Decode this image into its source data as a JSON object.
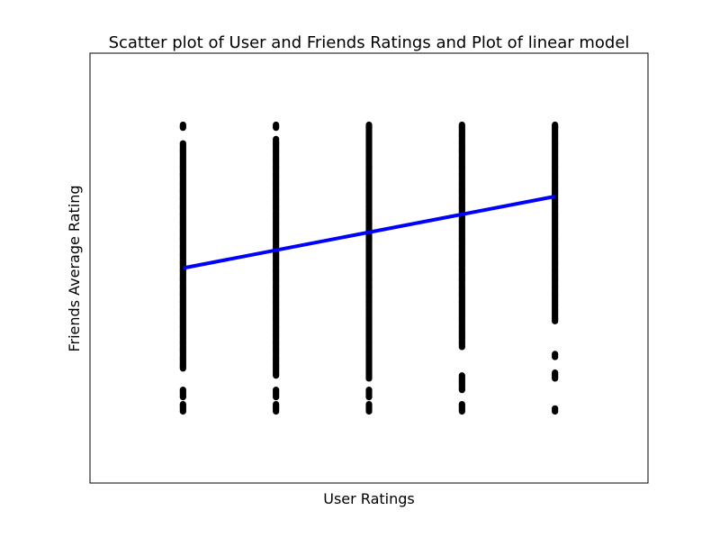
{
  "chart_data": {
    "type": "scatter",
    "title": "Scatter plot of User and Friends Ratings and Plot of linear model",
    "xlabel": "User Ratings",
    "ylabel": "Friends Average Rating",
    "xlim": [
      0,
      6
    ],
    "ylim": [
      0,
      6
    ],
    "grid": false,
    "ticks_visible": false,
    "colors": {
      "points": "#000000",
      "line": "#0000ff",
      "background": "#ffffff",
      "frame": "#000000"
    },
    "point_columns": [
      {
        "x": 1,
        "y_range": [
          1.0,
          5.0
        ],
        "gaps": [
          [
            4.75,
            4.95
          ],
          [
            1.3,
            1.6
          ],
          [
            1.1,
            1.2
          ]
        ]
      },
      {
        "x": 2,
        "y_range": [
          1.0,
          5.0
        ],
        "gaps": [
          [
            4.8,
            4.95
          ],
          [
            1.3,
            1.5
          ],
          [
            1.1,
            1.2
          ]
        ]
      },
      {
        "x": 3,
        "y_range": [
          1.0,
          5.0
        ],
        "gaps": [
          [
            1.3,
            1.45
          ],
          [
            1.1,
            1.2
          ]
        ]
      },
      {
        "x": 4,
        "y_range": [
          1.0,
          5.0
        ],
        "gaps": [
          [
            1.5,
            1.9
          ],
          [
            1.1,
            1.3
          ]
        ]
      },
      {
        "x": 5,
        "y_range": [
          1.0,
          5.0
        ],
        "gaps": [
          [
            1.05,
            1.45
          ],
          [
            1.55,
            1.75
          ],
          [
            1.8,
            2.25
          ]
        ]
      }
    ],
    "series": [
      {
        "type": "line",
        "x": [
          1,
          5
        ],
        "y": [
          3.0,
          4.0
        ]
      }
    ]
  }
}
